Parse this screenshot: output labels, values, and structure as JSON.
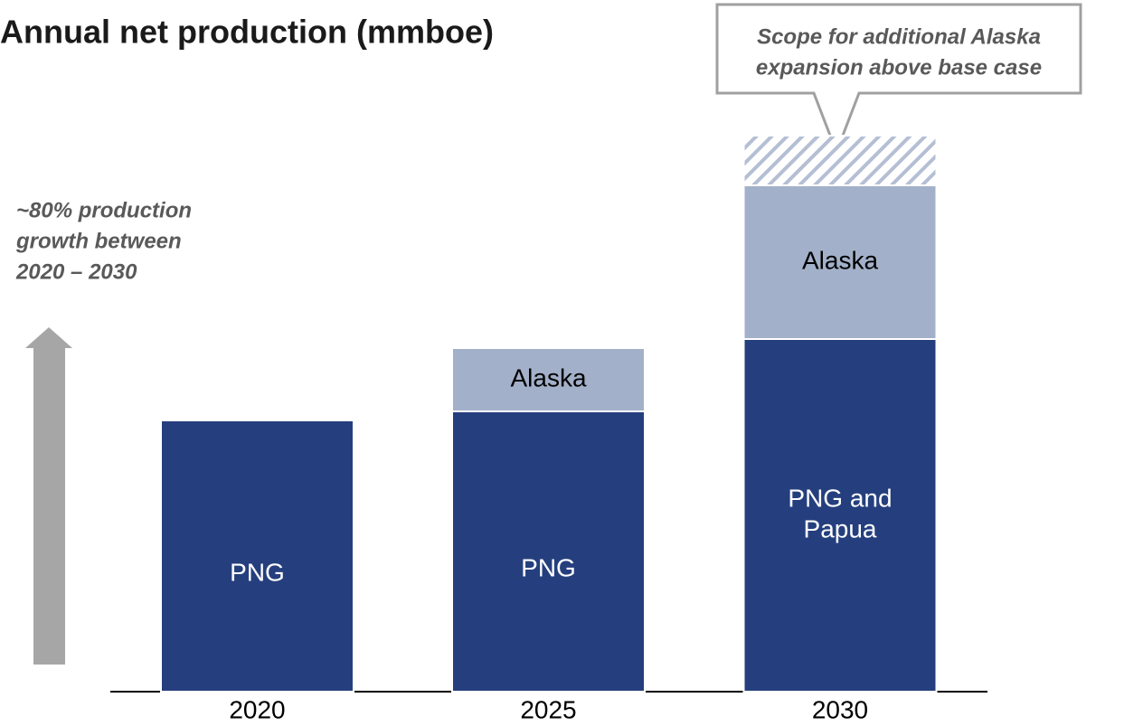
{
  "chart_data": {
    "type": "stacked_bar",
    "title": "Annual net production (mmboe)",
    "categories": [
      "2020",
      "2025",
      "2030"
    ],
    "series": [
      {
        "color": "#253f7e",
        "values": [
          30,
          31,
          39
        ],
        "labels": [
          [
            "PNG"
          ],
          [
            "PNG"
          ],
          [
            "PNG and",
            "Papua"
          ]
        ],
        "label_color": "#ffffff"
      },
      {
        "color": "#a3b0c9",
        "values": [
          null,
          7,
          17
        ],
        "labels": [
          null,
          [
            "Alaska"
          ],
          [
            "Alaska"
          ]
        ],
        "label_color": "#000000"
      },
      {
        "color": "#b4bfd4",
        "values": [
          null,
          null,
          5.5
        ],
        "hatched": true
      }
    ],
    "ylim": [
      0,
      62
    ],
    "annotations": [
      {
        "lines": [
          "~80% production",
          "growth between",
          "2020 – 2030"
        ]
      },
      {
        "lines": [
          "Scope for additional Alaska",
          "expansion above base case"
        ]
      }
    ]
  }
}
